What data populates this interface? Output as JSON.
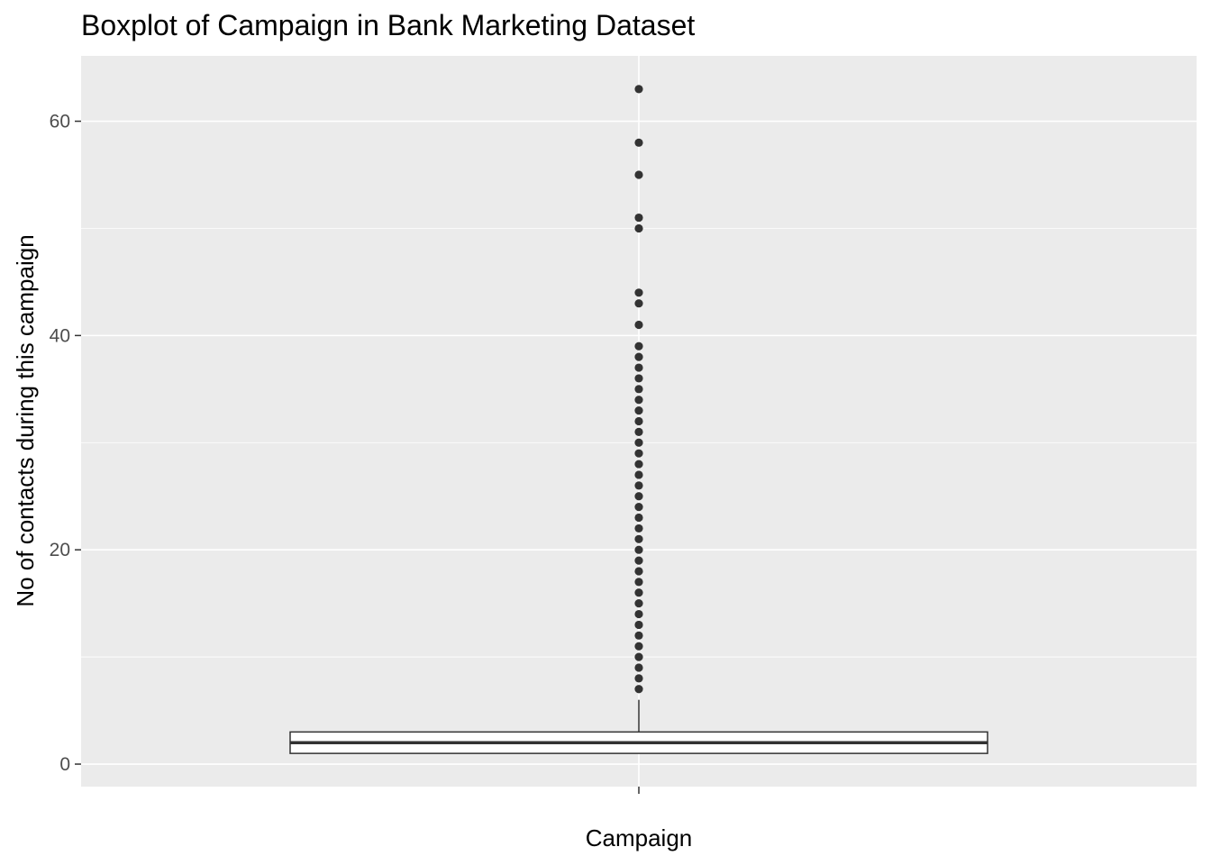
{
  "chart_data": {
    "type": "boxplot",
    "title": "Boxplot of Campaign in Bank Marketing Dataset",
    "xlabel": "Campaign",
    "ylabel": "No of contacts during this campaign",
    "categories": [
      ""
    ],
    "ylim": [
      -2.1,
      66.1
    ],
    "yticks": [
      0,
      20,
      40,
      60
    ],
    "grid": true,
    "box": {
      "q1": 1,
      "median": 2,
      "q3": 3,
      "whisker_low": 1,
      "whisker_high": 6
    },
    "outliers": [
      7,
      8,
      9,
      10,
      11,
      12,
      13,
      14,
      15,
      16,
      17,
      18,
      19,
      20,
      21,
      22,
      23,
      24,
      25,
      26,
      27,
      28,
      29,
      30,
      31,
      32,
      33,
      34,
      35,
      36,
      37,
      38,
      39,
      41,
      43,
      44,
      50,
      51,
      55,
      58,
      63
    ],
    "colors": {
      "panel": "#ebebeb",
      "grid_major": "#ffffff",
      "outlier": "#333333",
      "box_line": "#333333"
    }
  }
}
